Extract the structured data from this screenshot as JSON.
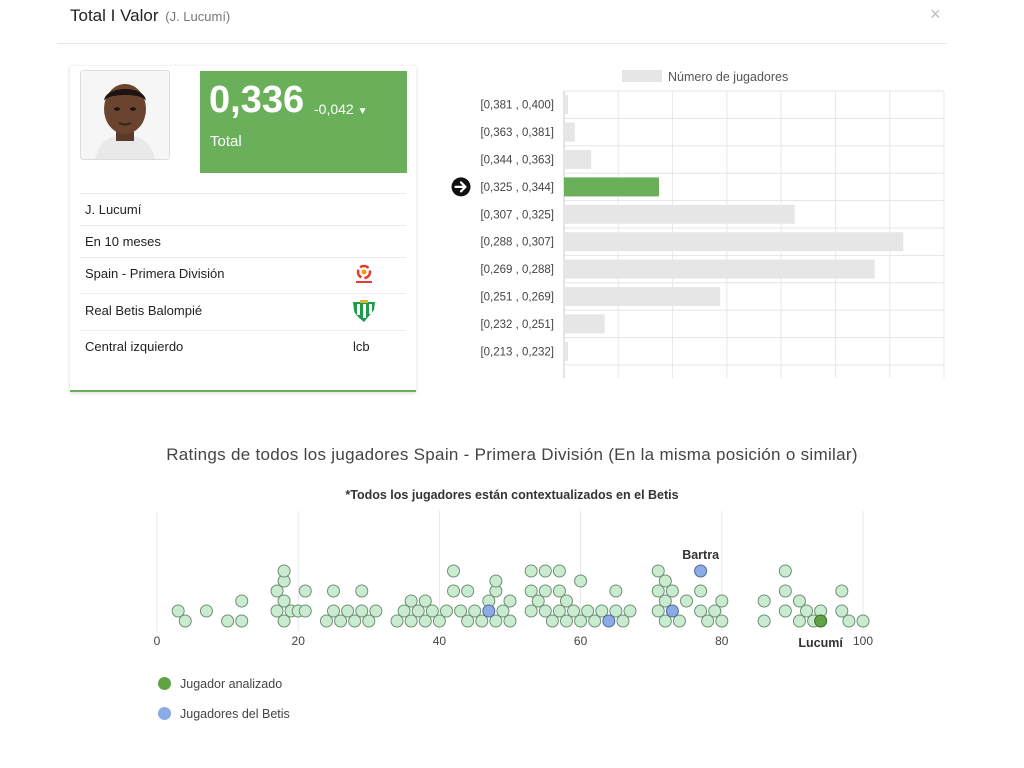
{
  "header": {
    "title": "Total I Valor",
    "subtitle": "(J. Lucumí)",
    "close_icon": "×"
  },
  "score": {
    "value": "0,336",
    "delta": "-0,042",
    "label": "Total"
  },
  "player_info": {
    "name": "J. Lucumí",
    "time": "En 10 meses",
    "league": "Spain - Primera División",
    "team": "Real Betis Balompié",
    "position": "Central izquierdo",
    "position_code": "lcb"
  },
  "colors": {
    "accent_green": "#6aaf5a",
    "bar_gray": "#e6e6e6",
    "dot_fill": "#c9ecd0",
    "dot_stroke": "#6f8f74",
    "highlight_green": "#5fa344",
    "betis_blue": "#8aabe6"
  },
  "chart_data": [
    {
      "type": "bar",
      "orientation": "horizontal",
      "legend": "Número de jugadores",
      "legend_position": "top",
      "categories": [
        "[0,381 , 0,400]",
        "[0,363 , 0,381]",
        "[0,344 , 0,363]",
        "[0,325 , 0,344]",
        "[0,307 , 0,325]",
        "[0,288 , 0,307]",
        "[0,269 , 0,288]",
        "[0,251 , 0,269]",
        "[0,232 , 0,251]",
        "[0,213 , 0,232]"
      ],
      "values": [
        0.3,
        0.8,
        2,
        7,
        17,
        25,
        22.9,
        11.5,
        3,
        0.3
      ],
      "highlight_index": 3,
      "xlim": [
        0,
        28
      ],
      "grid": true
    },
    {
      "type": "scatter",
      "title": "Ratings de todos los jugadores Spain - Primera División (En la misma posición o similar)",
      "subtitle": "*Todos los jugadores están contextualizados en el Betis",
      "xlim": [
        0,
        100
      ],
      "x_ticks": [
        0,
        20,
        40,
        60,
        80,
        100
      ],
      "grid": true,
      "points": [
        {
          "x": 3,
          "level": 1
        },
        {
          "x": 4,
          "level": 0
        },
        {
          "x": 7,
          "level": 1
        },
        {
          "x": 10,
          "level": 0
        },
        {
          "x": 12,
          "level": 0
        },
        {
          "x": 12,
          "level": 2
        },
        {
          "x": 17,
          "level": 1
        },
        {
          "x": 17,
          "level": 3
        },
        {
          "x": 18,
          "level": 0
        },
        {
          "x": 18,
          "level": 2
        },
        {
          "x": 18,
          "level": 4
        },
        {
          "x": 18,
          "level": 5
        },
        {
          "x": 19,
          "level": 1
        },
        {
          "x": 20,
          "level": 1
        },
        {
          "x": 21,
          "level": 3
        },
        {
          "x": 21,
          "level": 1
        },
        {
          "x": 24,
          "level": 0
        },
        {
          "x": 25,
          "level": 1
        },
        {
          "x": 25,
          "level": 3
        },
        {
          "x": 26,
          "level": 0
        },
        {
          "x": 27,
          "level": 1
        },
        {
          "x": 28,
          "level": 0
        },
        {
          "x": 29,
          "level": 1
        },
        {
          "x": 29,
          "level": 3
        },
        {
          "x": 30,
          "level": 0
        },
        {
          "x": 31,
          "level": 1
        },
        {
          "x": 34,
          "level": 0
        },
        {
          "x": 35,
          "level": 1
        },
        {
          "x": 36,
          "level": 0
        },
        {
          "x": 36,
          "level": 2
        },
        {
          "x": 37,
          "level": 1
        },
        {
          "x": 38,
          "level": 0
        },
        {
          "x": 38,
          "level": 2
        },
        {
          "x": 39,
          "level": 1
        },
        {
          "x": 40,
          "level": 0
        },
        {
          "x": 41,
          "level": 1
        },
        {
          "x": 42,
          "level": 3
        },
        {
          "x": 42,
          "level": 5
        },
        {
          "x": 43,
          "level": 1
        },
        {
          "x": 44,
          "level": 0
        },
        {
          "x": 44,
          "level": 3
        },
        {
          "x": 45,
          "level": 1
        },
        {
          "x": 46,
          "level": 0
        },
        {
          "x": 47,
          "level": 2
        },
        {
          "x": 48,
          "level": 0
        },
        {
          "x": 48,
          "level": 3
        },
        {
          "x": 48,
          "level": 4
        },
        {
          "x": 49,
          "level": 1
        },
        {
          "x": 50,
          "level": 0
        },
        {
          "x": 50,
          "level": 2
        },
        {
          "x": 53,
          "level": 1
        },
        {
          "x": 53,
          "level": 3
        },
        {
          "x": 53,
          "level": 5
        },
        {
          "x": 54,
          "level": 2
        },
        {
          "x": 55,
          "level": 1
        },
        {
          "x": 55,
          "level": 3
        },
        {
          "x": 55,
          "level": 5
        },
        {
          "x": 56,
          "level": 0
        },
        {
          "x": 57,
          "level": 1
        },
        {
          "x": 57,
          "level": 3
        },
        {
          "x": 57,
          "level": 5
        },
        {
          "x": 58,
          "level": 0
        },
        {
          "x": 58,
          "level": 2
        },
        {
          "x": 59,
          "level": 1
        },
        {
          "x": 60,
          "level": 0
        },
        {
          "x": 60,
          "level": 4
        },
        {
          "x": 61,
          "level": 1
        },
        {
          "x": 62,
          "level": 0
        },
        {
          "x": 63,
          "level": 1
        },
        {
          "x": 65,
          "level": 1
        },
        {
          "x": 65,
          "level": 3
        },
        {
          "x": 66,
          "level": 0
        },
        {
          "x": 67,
          "level": 1
        },
        {
          "x": 71,
          "level": 1
        },
        {
          "x": 71,
          "level": 3
        },
        {
          "x": 71,
          "level": 5
        },
        {
          "x": 72,
          "level": 0
        },
        {
          "x": 72,
          "level": 2
        },
        {
          "x": 72,
          "level": 4
        },
        {
          "x": 73,
          "level": 3
        },
        {
          "x": 74,
          "level": 0
        },
        {
          "x": 75,
          "level": 2
        },
        {
          "x": 77,
          "level": 1
        },
        {
          "x": 77,
          "level": 3
        },
        {
          "x": 78,
          "level": 0
        },
        {
          "x": 79,
          "level": 1
        },
        {
          "x": 80,
          "level": 0
        },
        {
          "x": 80,
          "level": 2
        },
        {
          "x": 86,
          "level": 0
        },
        {
          "x": 86,
          "level": 2
        },
        {
          "x": 89,
          "level": 1
        },
        {
          "x": 89,
          "level": 3
        },
        {
          "x": 89,
          "level": 5
        },
        {
          "x": 91,
          "level": 0
        },
        {
          "x": 91,
          "level": 2
        },
        {
          "x": 92,
          "level": 1
        },
        {
          "x": 93,
          "level": 0
        },
        {
          "x": 94,
          "level": 1
        },
        {
          "x": 97,
          "level": 1
        },
        {
          "x": 97,
          "level": 3
        },
        {
          "x": 98,
          "level": 0
        },
        {
          "x": 100,
          "level": 0
        },
        {
          "x": 47,
          "level": 1,
          "kind": "betis"
        },
        {
          "x": 64,
          "level": 0,
          "kind": "betis"
        },
        {
          "x": 73,
          "level": 1,
          "kind": "betis"
        },
        {
          "x": 77,
          "level": 5,
          "kind": "betis",
          "label": "Bartra",
          "label_pos": "above"
        },
        {
          "x": 94,
          "level": 0,
          "kind": "analyzed",
          "label": "Lucumí",
          "label_pos": "below"
        }
      ],
      "legend": [
        {
          "label": "Jugador analizado",
          "color": "#5fa344"
        },
        {
          "label": "Jugadores del Betis",
          "color": "#8aabe6"
        }
      ]
    }
  ]
}
